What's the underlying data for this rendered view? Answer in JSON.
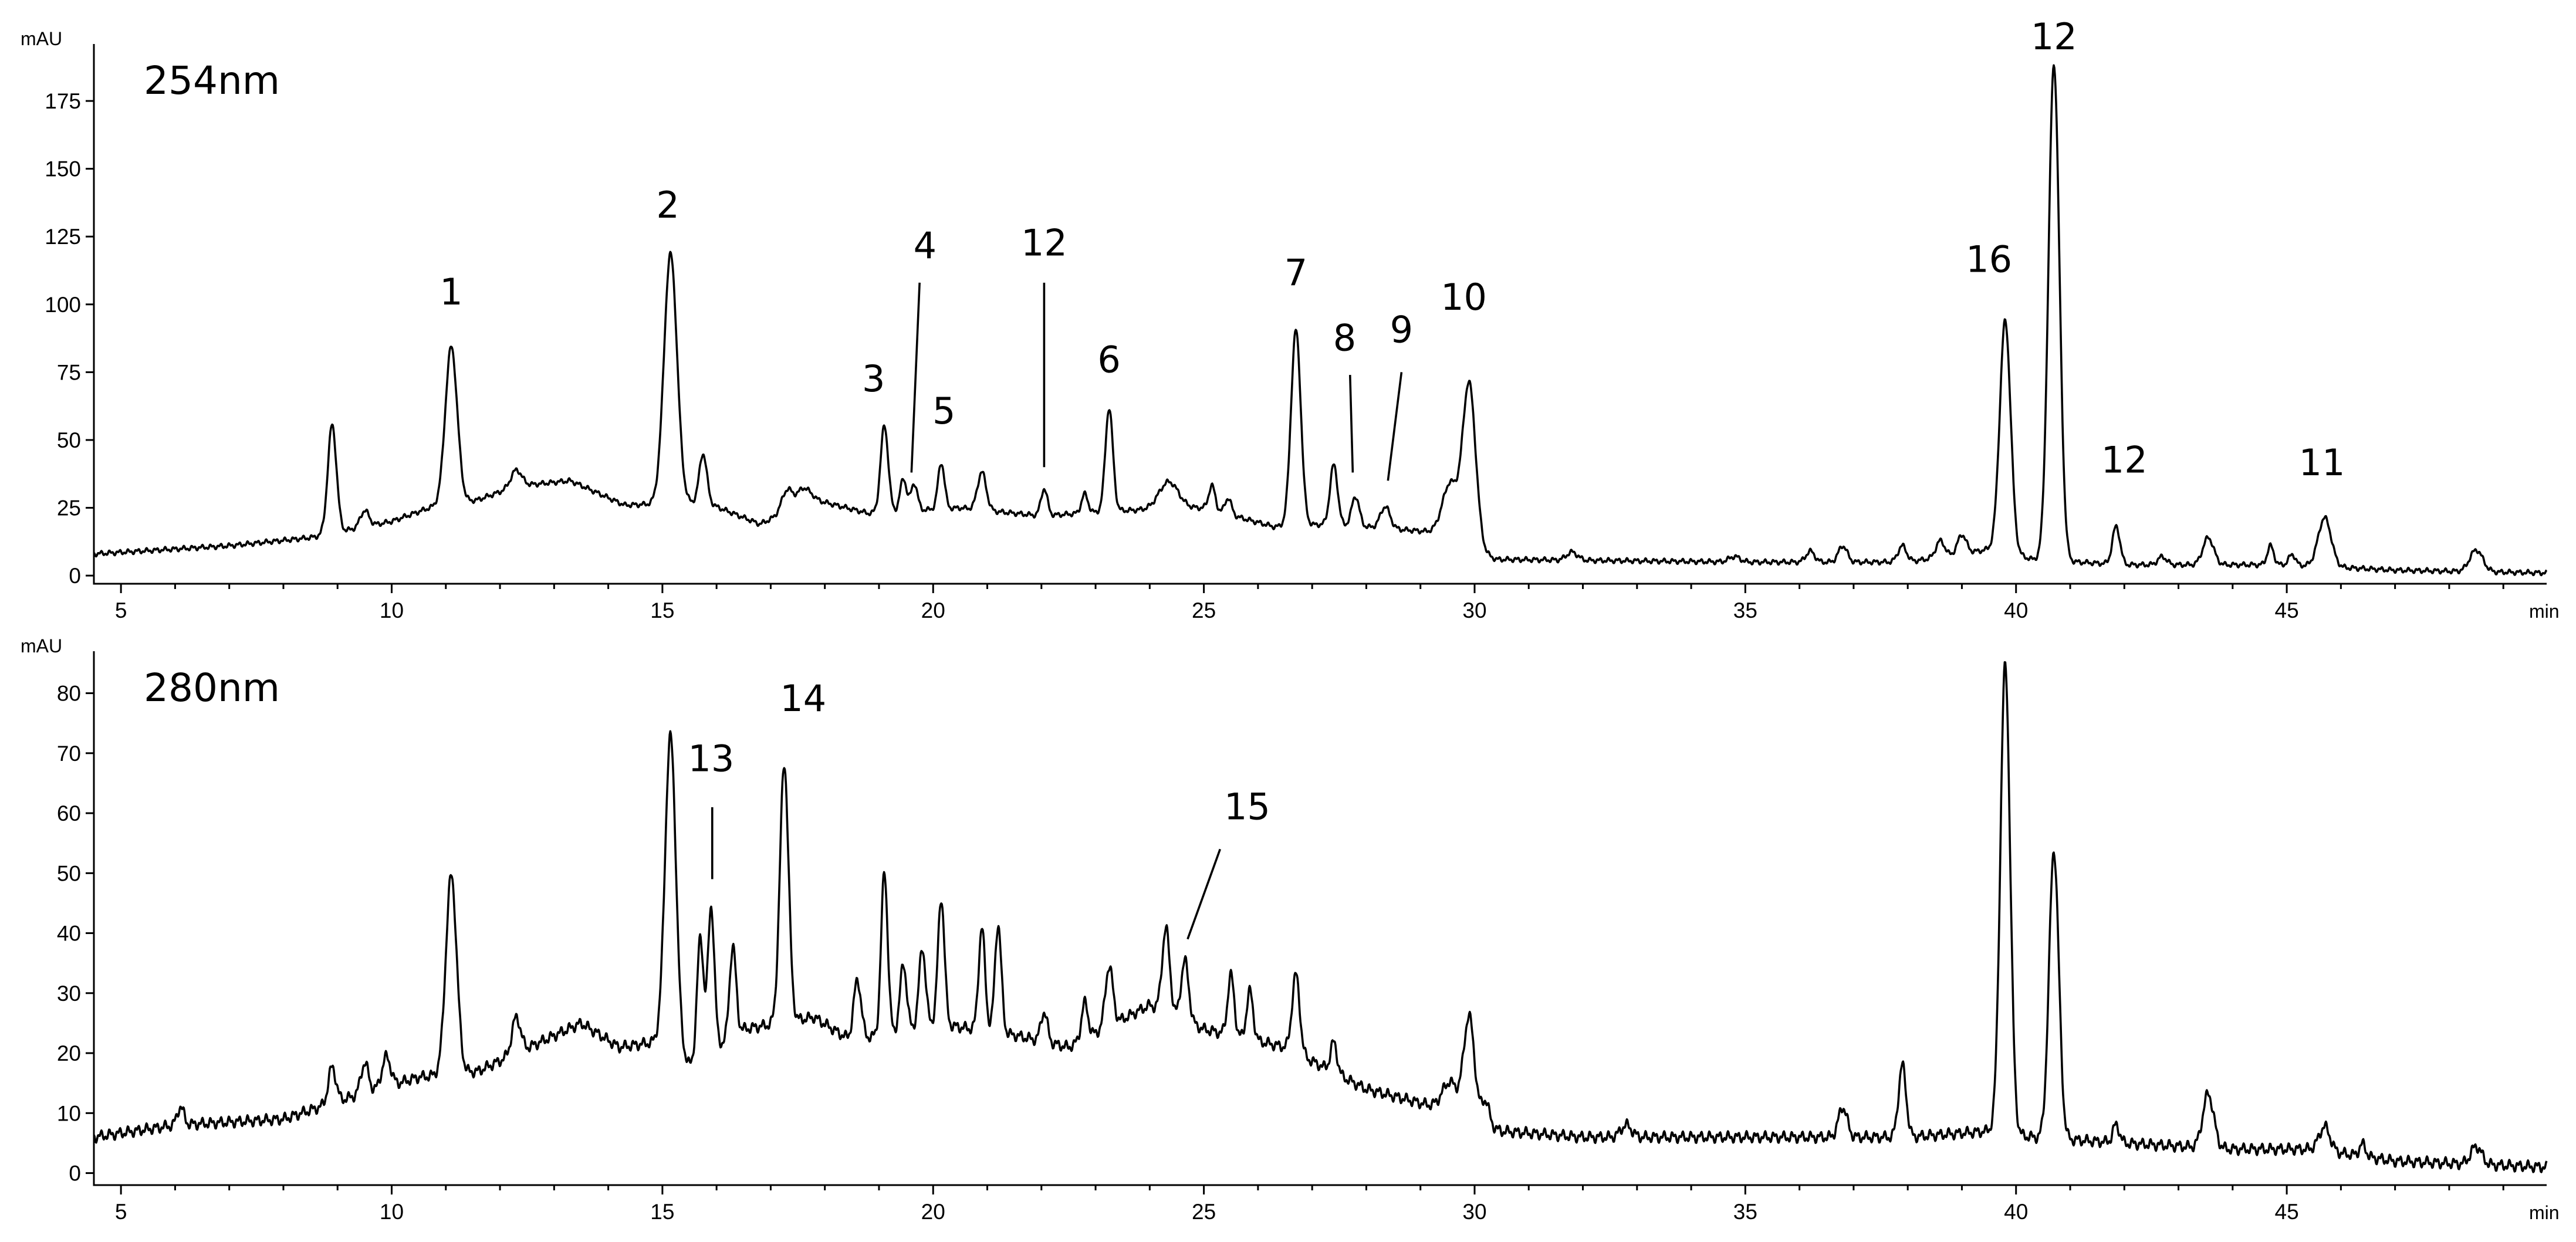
{
  "chart_data": [
    {
      "type": "line",
      "title": "254nm",
      "ylabel": "mAU",
      "xlabel": "min",
      "xlim": [
        4.5,
        49.8
      ],
      "ylim": [
        -3,
        196
      ],
      "xticks": [
        5,
        10,
        15,
        20,
        25,
        30,
        35,
        40,
        45
      ],
      "yticks": [
        0,
        25,
        50,
        75,
        100,
        125,
        150,
        175
      ],
      "baseline": [
        [
          4.5,
          8
        ],
        [
          7,
          11
        ],
        [
          8.5,
          14
        ],
        [
          10,
          20
        ],
        [
          10.7,
          25
        ],
        [
          11.6,
          28
        ],
        [
          12.3,
          33
        ],
        [
          13.3,
          35
        ],
        [
          14.3,
          26
        ],
        [
          15.8,
          27
        ],
        [
          16.8,
          19
        ],
        [
          17.8,
          28
        ],
        [
          18.8,
          23
        ],
        [
          20.5,
          25
        ],
        [
          22,
          22
        ],
        [
          23.5,
          24
        ],
        [
          25,
          25
        ],
        [
          26.3,
          18
        ],
        [
          27.3,
          19
        ],
        [
          29.3,
          16
        ],
        [
          30.4,
          6
        ],
        [
          35,
          5
        ],
        [
          38,
          5
        ],
        [
          39.6,
          10
        ],
        [
          40.3,
          6
        ],
        [
          42,
          4
        ],
        [
          45,
          4
        ],
        [
          47,
          2
        ],
        [
          49.8,
          1
        ]
      ],
      "peaks": [
        {
          "t": 8.9,
          "h": 40,
          "w": 0.08
        },
        {
          "t": 9.5,
          "h": 6,
          "w": 0.08
        },
        {
          "t": 11.1,
          "h": 58,
          "w": 0.11
        },
        {
          "t": 12.3,
          "h": 6,
          "w": 0.1
        },
        {
          "t": 15.15,
          "h": 92,
          "w": 0.12
        },
        {
          "t": 15.75,
          "h": 18,
          "w": 0.07
        },
        {
          "t": 17.3,
          "h": 8,
          "w": 0.1
        },
        {
          "t": 17.6,
          "h": 6,
          "w": 0.12
        },
        {
          "t": 19.1,
          "h": 32,
          "w": 0.07
        },
        {
          "t": 19.45,
          "h": 12,
          "w": 0.06
        },
        {
          "t": 19.65,
          "h": 10,
          "w": 0.06
        },
        {
          "t": 20.15,
          "h": 17,
          "w": 0.06
        },
        {
          "t": 20.9,
          "h": 14,
          "w": 0.08
        },
        {
          "t": 22.05,
          "h": 10,
          "w": 0.06
        },
        {
          "t": 22.8,
          "h": 7,
          "w": 0.06
        },
        {
          "t": 23.25,
          "h": 38,
          "w": 0.07
        },
        {
          "t": 24.35,
          "h": 10,
          "w": 0.18
        },
        {
          "t": 25.15,
          "h": 9,
          "w": 0.06
        },
        {
          "t": 25.45,
          "h": 6,
          "w": 0.06
        },
        {
          "t": 26.7,
          "h": 72,
          "w": 0.09
        },
        {
          "t": 27.4,
          "h": 22,
          "w": 0.07
        },
        {
          "t": 27.8,
          "h": 11,
          "w": 0.07
        },
        {
          "t": 28.35,
          "h": 8,
          "w": 0.09
        },
        {
          "t": 29.55,
          "h": 20,
          "w": 0.14
        },
        {
          "t": 29.9,
          "h": 60,
          "w": 0.12
        },
        {
          "t": 31.8,
          "h": 3,
          "w": 0.1
        },
        {
          "t": 34.8,
          "h": 2,
          "w": 0.1
        },
        {
          "t": 36.2,
          "h": 4,
          "w": 0.08
        },
        {
          "t": 36.8,
          "h": 6,
          "w": 0.08
        },
        {
          "t": 37.9,
          "h": 6,
          "w": 0.08
        },
        {
          "t": 38.6,
          "h": 6,
          "w": 0.08
        },
        {
          "t": 39.0,
          "h": 7,
          "w": 0.08
        },
        {
          "t": 39.8,
          "h": 85,
          "w": 0.1
        },
        {
          "t": 40.7,
          "h": 183,
          "w": 0.1
        },
        {
          "t": 41.85,
          "h": 14,
          "w": 0.07
        },
        {
          "t": 42.7,
          "h": 3,
          "w": 0.08
        },
        {
          "t": 43.55,
          "h": 10,
          "w": 0.1
        },
        {
          "t": 44.7,
          "h": 7,
          "w": 0.06
        },
        {
          "t": 45.1,
          "h": 4,
          "w": 0.06
        },
        {
          "t": 45.7,
          "h": 18,
          "w": 0.12
        },
        {
          "t": 48.5,
          "h": 8,
          "w": 0.12
        }
      ],
      "annotations": [
        {
          "label": "1",
          "x": 11.1,
          "y": 100
        },
        {
          "label": "2",
          "x": 15.1,
          "y": 132
        },
        {
          "label": "3",
          "x": 18.9,
          "y": 68
        },
        {
          "label": "4",
          "x": 19.85,
          "y": 117,
          "line_from": [
            19.75,
            108
          ],
          "line_to": [
            19.6,
            38
          ]
        },
        {
          "label": "5",
          "x": 20.2,
          "y": 56
        },
        {
          "label": "12",
          "x": 22.05,
          "y": 118,
          "line_from": [
            22.05,
            108
          ],
          "line_to": [
            22.05,
            40
          ]
        },
        {
          "label": "6",
          "x": 23.25,
          "y": 75
        },
        {
          "label": "7",
          "x": 26.7,
          "y": 107
        },
        {
          "label": "8",
          "x": 27.6,
          "y": 83,
          "line_from": [
            27.7,
            74
          ],
          "line_to": [
            27.75,
            38
          ]
        },
        {
          "label": "9",
          "x": 28.65,
          "y": 86,
          "line_from": [
            28.65,
            75
          ],
          "line_to": [
            28.4,
            35
          ]
        },
        {
          "label": "10",
          "x": 29.8,
          "y": 98
        },
        {
          "label": "16",
          "x": 39.5,
          "y": 112
        },
        {
          "label": "12",
          "x": 40.7,
          "y": 194
        },
        {
          "label": "12",
          "x": 42.0,
          "y": 38
        },
        {
          "label": "11",
          "x": 45.65,
          "y": 37
        }
      ]
    },
    {
      "type": "line",
      "title": "280nm",
      "ylabel": "mAU",
      "xlabel": "min",
      "xlim": [
        4.5,
        49.8
      ],
      "ylim": [
        -2,
        87
      ],
      "xticks": [
        5,
        10,
        15,
        20,
        25,
        30,
        35,
        40,
        45
      ],
      "yticks": [
        0,
        10,
        20,
        30,
        40,
        50,
        60,
        70,
        80
      ],
      "baseline": [
        [
          4.5,
          6
        ],
        [
          6,
          8
        ],
        [
          8,
          9
        ],
        [
          9,
          12
        ],
        [
          10.5,
          16
        ],
        [
          11.6,
          17
        ],
        [
          12.3,
          20
        ],
        [
          13.5,
          25
        ],
        [
          14.2,
          21
        ],
        [
          15,
          22
        ],
        [
          15.5,
          18
        ],
        [
          16.5,
          24
        ],
        [
          17.8,
          26
        ],
        [
          18.5,
          22
        ],
        [
          20,
          25
        ],
        [
          21.5,
          23
        ],
        [
          22.5,
          21
        ],
        [
          24,
          28
        ],
        [
          25,
          24
        ],
        [
          26.5,
          21
        ],
        [
          28,
          14
        ],
        [
          29.3,
          11
        ],
        [
          30.5,
          7
        ],
        [
          32,
          6
        ],
        [
          35,
          6
        ],
        [
          38,
          6
        ],
        [
          39.5,
          7
        ],
        [
          40.3,
          6
        ],
        [
          42,
          5
        ],
        [
          44,
          4
        ],
        [
          45.5,
          4
        ],
        [
          47,
          2
        ],
        [
          49.8,
          1
        ]
      ],
      "peaks": [
        {
          "t": 6.1,
          "h": 3,
          "w": 0.06
        },
        {
          "t": 8.9,
          "h": 6,
          "w": 0.07
        },
        {
          "t": 9.5,
          "h": 5,
          "w": 0.07
        },
        {
          "t": 9.9,
          "h": 5,
          "w": 0.08
        },
        {
          "t": 11.1,
          "h": 33,
          "w": 0.1
        },
        {
          "t": 12.3,
          "h": 6,
          "w": 0.08
        },
        {
          "t": 15.15,
          "h": 52,
          "w": 0.1
        },
        {
          "t": 15.7,
          "h": 20,
          "w": 0.06
        },
        {
          "t": 15.9,
          "h": 24,
          "w": 0.06
        },
        {
          "t": 16.3,
          "h": 15,
          "w": 0.06
        },
        {
          "t": 17.25,
          "h": 43,
          "w": 0.08
        },
        {
          "t": 18.6,
          "h": 10,
          "w": 0.07
        },
        {
          "t": 19.1,
          "h": 27,
          "w": 0.06
        },
        {
          "t": 19.45,
          "h": 11,
          "w": 0.06
        },
        {
          "t": 19.8,
          "h": 13,
          "w": 0.06
        },
        {
          "t": 20.15,
          "h": 21,
          "w": 0.06
        },
        {
          "t": 20.9,
          "h": 17,
          "w": 0.06
        },
        {
          "t": 21.2,
          "h": 18,
          "w": 0.06
        },
        {
          "t": 22.05,
          "h": 5,
          "w": 0.06
        },
        {
          "t": 22.8,
          "h": 6,
          "w": 0.06
        },
        {
          "t": 23.25,
          "h": 10,
          "w": 0.07
        },
        {
          "t": 24.3,
          "h": 14,
          "w": 0.07
        },
        {
          "t": 24.65,
          "h": 10,
          "w": 0.07
        },
        {
          "t": 25.5,
          "h": 10,
          "w": 0.06
        },
        {
          "t": 25.85,
          "h": 8,
          "w": 0.06
        },
        {
          "t": 26.7,
          "h": 13,
          "w": 0.07
        },
        {
          "t": 27.4,
          "h": 5,
          "w": 0.06
        },
        {
          "t": 29.55,
          "h": 5,
          "w": 0.14
        },
        {
          "t": 29.9,
          "h": 17,
          "w": 0.1
        },
        {
          "t": 30.2,
          "h": 4,
          "w": 0.07
        },
        {
          "t": 32.8,
          "h": 2,
          "w": 0.1
        },
        {
          "t": 36.8,
          "h": 5,
          "w": 0.08
        },
        {
          "t": 37.9,
          "h": 12,
          "w": 0.07
        },
        {
          "t": 39.8,
          "h": 78,
          "w": 0.09
        },
        {
          "t": 40.7,
          "h": 48,
          "w": 0.09
        },
        {
          "t": 41.85,
          "h": 3,
          "w": 0.06
        },
        {
          "t": 43.55,
          "h": 9,
          "w": 0.1
        },
        {
          "t": 45.7,
          "h": 4,
          "w": 0.1
        },
        {
          "t": 46.4,
          "h": 2,
          "w": 0.06
        },
        {
          "t": 48.5,
          "h": 3,
          "w": 0.1
        }
      ],
      "annotations": [
        {
          "label": "13",
          "x": 15.9,
          "y": 67,
          "line_from": [
            15.92,
            61
          ],
          "line_to": [
            15.92,
            49
          ]
        },
        {
          "label": "14",
          "x": 17.6,
          "y": 77
        },
        {
          "label": "15",
          "x": 25.8,
          "y": 59,
          "line_from": [
            25.3,
            54
          ],
          "line_to": [
            24.7,
            39
          ]
        }
      ]
    }
  ]
}
